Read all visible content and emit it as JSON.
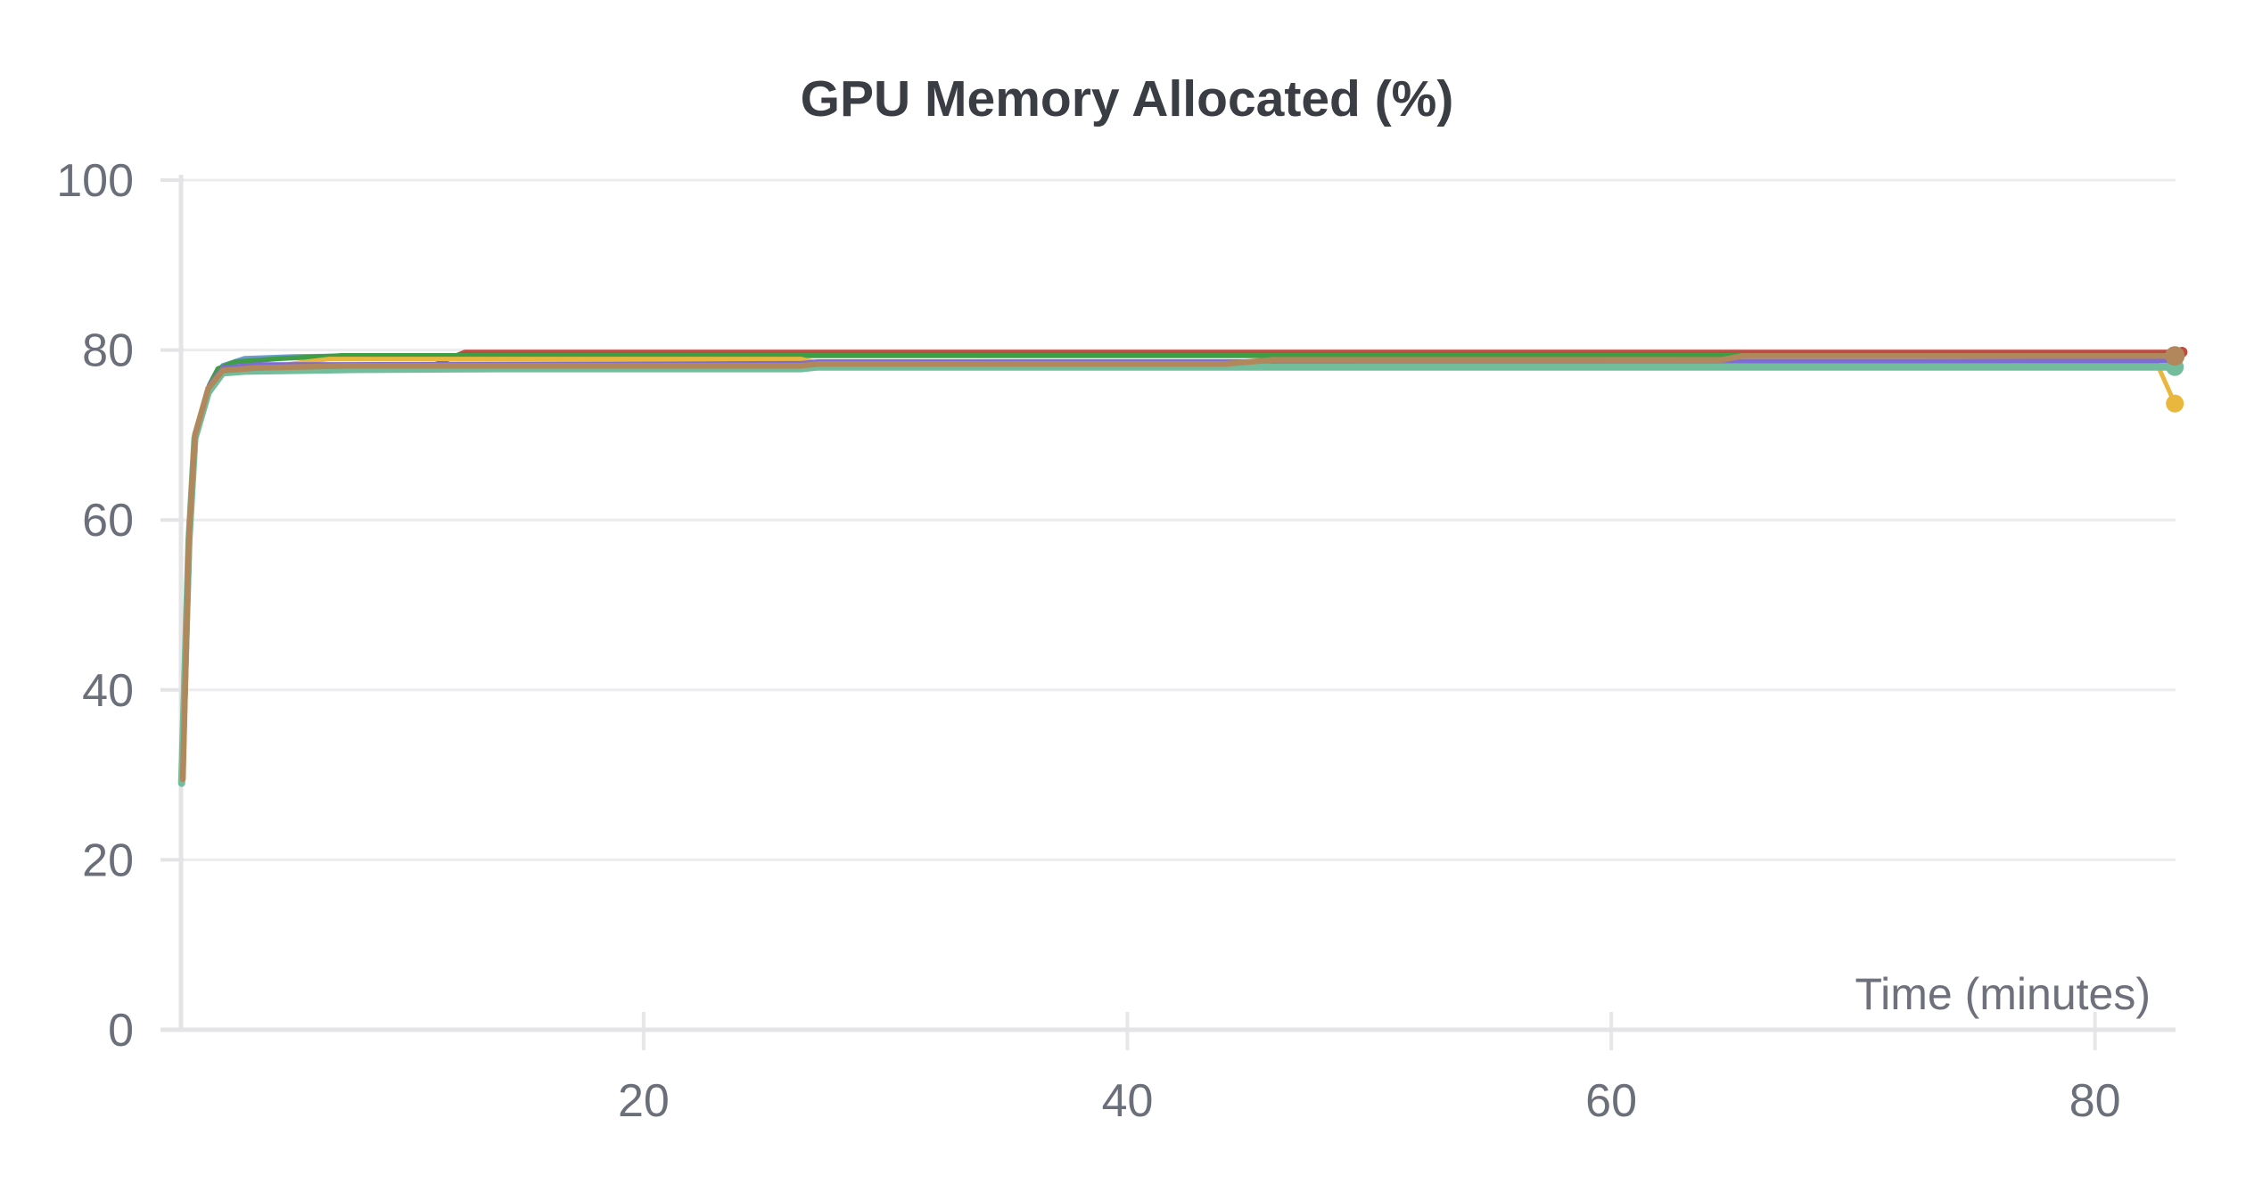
{
  "chart_data": {
    "type": "line",
    "title": "GPU Memory Allocated (%)",
    "xlabel": "Time (minutes)",
    "ylabel": "",
    "xlim": [
      0.87,
      83.3
    ],
    "ylim": [
      0,
      100
    ],
    "x_ticks": [
      20,
      40,
      60,
      80
    ],
    "y_ticks": [
      0,
      20,
      40,
      60,
      80,
      100
    ],
    "grid": "horizontal",
    "legend": "none",
    "colors": {
      "grid": "#ECECEE",
      "axis": "#E4E4E7",
      "tick": "#E7E7EA",
      "tick_label": "#6B6F7A",
      "title": "#3A3D44",
      "axis_label": "#6E717C",
      "background": "#FFFFFF"
    },
    "series": [
      {
        "name": "blue",
        "color": "#6E9BD6",
        "width": 5,
        "points": [
          [
            0.95,
            29.5
          ],
          [
            1.2,
            58
          ],
          [
            1.45,
            70
          ],
          [
            2.0,
            75.5
          ],
          [
            2.6,
            78.2
          ],
          [
            3.5,
            79.05
          ],
          [
            5.5,
            79.25
          ],
          [
            7,
            79.3
          ],
          [
            83.3,
            79.3
          ]
        ]
      },
      {
        "name": "red",
        "color": "#C04B40",
        "width": 5.5,
        "end_dot": {
          "x": 83.6,
          "y": 79.75,
          "r": 6
        },
        "points": [
          [
            0.95,
            29.5
          ],
          [
            1.2,
            58
          ],
          [
            1.45,
            70
          ],
          [
            2.0,
            75.4
          ],
          [
            2.6,
            77.6
          ],
          [
            4,
            77.9
          ],
          [
            8,
            78.15
          ],
          [
            11.3,
            78.2
          ],
          [
            12.6,
            79.75
          ],
          [
            83.6,
            79.75
          ]
        ]
      },
      {
        "name": "green",
        "color": "#3F9D45",
        "width": 5.5,
        "points": [
          [
            0.95,
            29.7
          ],
          [
            1.25,
            58.5
          ],
          [
            1.5,
            70.3
          ],
          [
            2.05,
            75.9
          ],
          [
            2.4,
            77.8
          ],
          [
            3.1,
            78.6
          ],
          [
            5,
            79.0
          ],
          [
            7.5,
            79.35
          ],
          [
            83.3,
            79.35
          ]
        ]
      },
      {
        "name": "yellow",
        "color": "#E9B73D",
        "width": 5,
        "end_dot": {
          "x": 83.3,
          "y": 73.7,
          "r": 10
        },
        "points": [
          [
            0.95,
            29.5
          ],
          [
            1.2,
            58
          ],
          [
            1.45,
            70
          ],
          [
            2.0,
            75.5
          ],
          [
            2.6,
            77.9
          ],
          [
            5,
            78.2
          ],
          [
            6,
            78.6
          ],
          [
            7,
            78.95
          ],
          [
            26.5,
            78.95
          ],
          [
            27.3,
            78.45
          ],
          [
            82.55,
            78.45
          ],
          [
            83.3,
            73.7
          ]
        ]
      },
      {
        "name": "purple",
        "color": "#7D6BD8",
        "width": 5,
        "points": [
          [
            0.95,
            29.9
          ],
          [
            1.25,
            58.5
          ],
          [
            1.5,
            70.4
          ],
          [
            2.05,
            75.9
          ],
          [
            2.6,
            77.9
          ],
          [
            4,
            78.3
          ],
          [
            26.5,
            78.45
          ],
          [
            27.2,
            78.65
          ],
          [
            83.4,
            78.7
          ]
        ]
      },
      {
        "name": "teal",
        "color": "#74BD9C",
        "width": 8,
        "end_dot": {
          "x": 83.3,
          "y": 78.0,
          "r": 10
        },
        "points": [
          [
            0.9,
            29.0
          ],
          [
            1.2,
            57.5
          ],
          [
            1.45,
            69.6
          ],
          [
            2.0,
            75.0
          ],
          [
            2.6,
            77.3
          ],
          [
            3.5,
            77.5
          ],
          [
            8,
            77.7
          ],
          [
            14,
            77.8
          ],
          [
            26.5,
            77.8
          ],
          [
            27.2,
            78.0
          ],
          [
            83.3,
            78.0
          ]
        ]
      },
      {
        "name": "brown",
        "color": "#B0885C",
        "width": 6.5,
        "end_dot": {
          "x": 83.3,
          "y": 79.3,
          "r": 11
        },
        "points": [
          [
            0.95,
            29.5
          ],
          [
            1.2,
            58
          ],
          [
            1.45,
            70
          ],
          [
            2.0,
            75.5
          ],
          [
            2.6,
            77.6
          ],
          [
            4,
            77.9
          ],
          [
            8,
            78.15
          ],
          [
            26.5,
            78.15
          ],
          [
            27.2,
            78.35
          ],
          [
            44,
            78.35
          ],
          [
            46,
            78.85
          ],
          [
            64.6,
            78.85
          ],
          [
            65.4,
            79.3
          ],
          [
            83.3,
            79.3
          ]
        ]
      }
    ]
  }
}
